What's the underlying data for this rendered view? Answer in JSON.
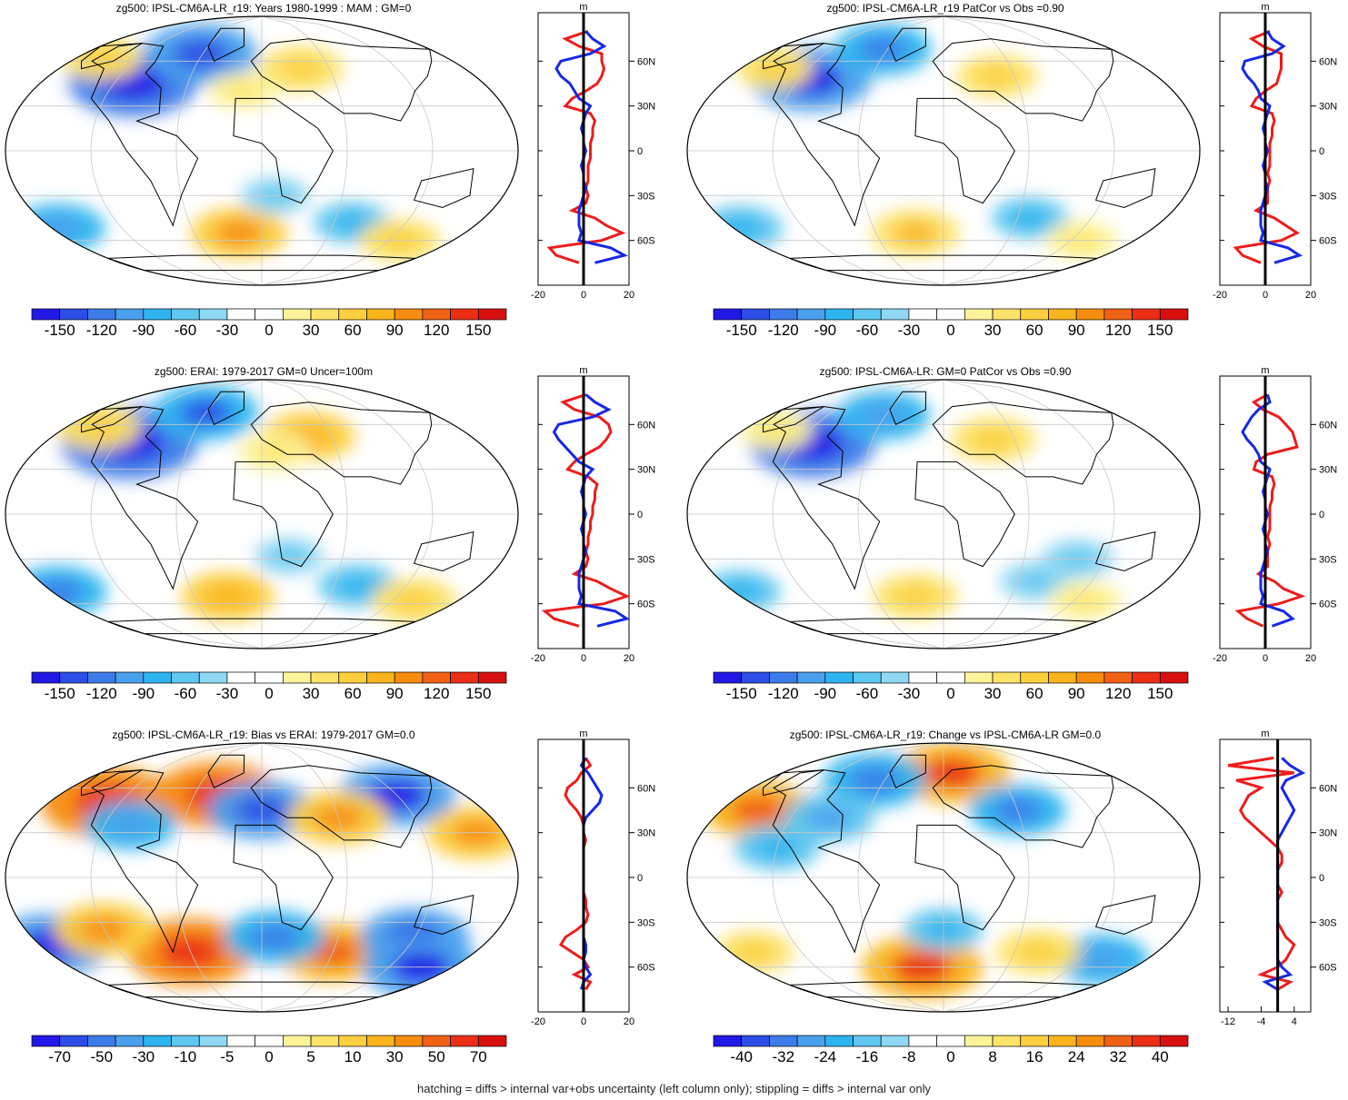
{
  "footer": "hatching = diffs > internal var+obs uncertainty (left column only); stippling = diffs > internal var only",
  "chart_data": [
    {
      "type": "heatmap",
      "title": "zg500: IPSL-CM6A-LR_r19: Years 1980-1999 : MAM : GM=0",
      "colorbar_ticks": [
        "-150",
        "-120",
        "-90",
        "-60",
        "-30",
        "0",
        "30",
        "60",
        "90",
        "120",
        "150"
      ],
      "blobs": [
        {
          "lon": -105,
          "lat": 46,
          "v": -100
        },
        {
          "lon": -62,
          "lat": 65,
          "v": -80
        },
        {
          "lon": 35,
          "lat": 55,
          "v": 45
        },
        {
          "lon": -155,
          "lat": 62,
          "v": 40
        },
        {
          "lon": -15,
          "lat": 40,
          "v": 25
        },
        {
          "lon": -175,
          "lat": -52,
          "v": -55
        },
        {
          "lon": 75,
          "lat": -48,
          "v": -35
        },
        {
          "lon": -20,
          "lat": -55,
          "v": 60
        },
        {
          "lon": 130,
          "lat": -60,
          "v": 40
        },
        {
          "lon": 10,
          "lat": -30,
          "v": -25
        }
      ],
      "profile_axis": {
        "xticks": [
          "-20",
          "0",
          "20"
        ],
        "xlim": [
          -20,
          20
        ],
        "yticks": [
          "60N",
          "30N",
          "0",
          "30S",
          "60S"
        ],
        "unit": "m"
      },
      "profile": {
        "lat": [
          80,
          75,
          70,
          65,
          60,
          55,
          50,
          45,
          40,
          35,
          30,
          25,
          20,
          15,
          10,
          5,
          0,
          -5,
          -10,
          -15,
          -20,
          -25,
          -30,
          -35,
          -40,
          -45,
          -50,
          -55,
          -60,
          -65,
          -70,
          -75
        ],
        "red": [
          2,
          -8,
          -2,
          8,
          8,
          9,
          8,
          6,
          1,
          -5,
          -8,
          3,
          5,
          4,
          4,
          3,
          3,
          3,
          2,
          2,
          2,
          1,
          2,
          1,
          -5,
          5,
          10,
          17,
          8,
          -15,
          -12,
          -2
        ],
        "blue": [
          1,
          4,
          9,
          3,
          -10,
          -12,
          -10,
          -6,
          -4,
          -2,
          3,
          1,
          0,
          -1,
          0,
          0,
          1,
          0,
          -1,
          0,
          0,
          1,
          0,
          -1,
          -2,
          -2,
          -2,
          -1,
          -2,
          12,
          18,
          5
        ]
      }
    },
    {
      "type": "heatmap",
      "title": "zg500: IPSL-CM6A-LR_r19 PatCor vs Obs =0.90",
      "colorbar_ticks": [
        "-150",
        "-120",
        "-90",
        "-60",
        "-30",
        "0",
        "30",
        "60",
        "90",
        "120",
        "150"
      ],
      "blobs": [
        {
          "lon": -110,
          "lat": 48,
          "v": -90
        },
        {
          "lon": -65,
          "lat": 68,
          "v": -60
        },
        {
          "lon": 45,
          "lat": 50,
          "v": 40
        },
        {
          "lon": -150,
          "lat": 55,
          "v": 35
        },
        {
          "lon": -175,
          "lat": -52,
          "v": -45
        },
        {
          "lon": 70,
          "lat": -45,
          "v": -35
        },
        {
          "lon": -25,
          "lat": -55,
          "v": 50
        },
        {
          "lon": 130,
          "lat": -60,
          "v": 30
        }
      ],
      "profile_axis": {
        "xticks": [
          "-20",
          "0",
          "20"
        ],
        "xlim": [
          -20,
          20
        ],
        "yticks": [
          "60N",
          "30N",
          "0",
          "30S",
          "60S"
        ],
        "unit": "m"
      },
      "profile": {
        "lat": [
          80,
          75,
          70,
          65,
          60,
          55,
          50,
          45,
          40,
          35,
          30,
          25,
          20,
          15,
          10,
          5,
          0,
          -5,
          -10,
          -15,
          -20,
          -25,
          -30,
          -35,
          -40,
          -45,
          -50,
          -55,
          -60,
          -65,
          -70,
          -75
        ],
        "red": [
          2,
          -6,
          -1,
          7,
          7,
          7,
          6,
          5,
          0,
          -4,
          -6,
          3,
          4,
          3,
          3,
          2,
          2,
          2,
          2,
          1,
          2,
          1,
          1,
          1,
          -4,
          4,
          9,
          14,
          7,
          -13,
          -10,
          -2
        ],
        "blue": [
          1,
          3,
          8,
          3,
          -9,
          -10,
          -8,
          -5,
          -3,
          -2,
          2,
          1,
          0,
          -1,
          0,
          0,
          1,
          0,
          -1,
          0,
          0,
          1,
          0,
          -1,
          -2,
          -2,
          -2,
          -1,
          -2,
          10,
          15,
          4
        ]
      }
    },
    {
      "type": "heatmap",
      "title": "zg500: ERAI: 1979-2017 GM=0 Uncer=100m",
      "colorbar_ticks": [
        "-150",
        "-120",
        "-90",
        "-60",
        "-30",
        "0",
        "30",
        "60",
        "90",
        "120",
        "150"
      ],
      "blobs": [
        {
          "lon": -110,
          "lat": 48,
          "v": -110
        },
        {
          "lon": -60,
          "lat": 68,
          "v": -70
        },
        {
          "lon": 40,
          "lat": 52,
          "v": 55
        },
        {
          "lon": -150,
          "lat": 58,
          "v": 45
        },
        {
          "lon": 10,
          "lat": 42,
          "v": 30
        },
        {
          "lon": -175,
          "lat": -52,
          "v": -60
        },
        {
          "lon": 80,
          "lat": -48,
          "v": -40
        },
        {
          "lon": -30,
          "lat": -55,
          "v": 55
        },
        {
          "lon": 140,
          "lat": -58,
          "v": 45
        },
        {
          "lon": 20,
          "lat": -28,
          "v": -25
        }
      ],
      "profile_axis": {
        "xticks": [
          "-20",
          "0",
          "20"
        ],
        "xlim": [
          -20,
          20
        ],
        "yticks": [
          "60N",
          "30N",
          "0",
          "30S",
          "60S"
        ],
        "unit": "m"
      },
      "profile": {
        "lat": [
          80,
          75,
          70,
          65,
          60,
          55,
          50,
          45,
          40,
          35,
          30,
          25,
          20,
          15,
          10,
          5,
          0,
          -5,
          -10,
          -15,
          -20,
          -25,
          -30,
          -35,
          -40,
          -45,
          -50,
          -55,
          -60,
          -65,
          -70,
          -75
        ],
        "red": [
          1,
          -9,
          -4,
          7,
          11,
          12,
          10,
          7,
          1,
          -4,
          -7,
          2,
          6,
          5,
          5,
          4,
          4,
          3,
          3,
          2,
          2,
          1,
          2,
          1,
          -4,
          6,
          12,
          19,
          9,
          -17,
          -13,
          -2
        ],
        "blue": [
          1,
          5,
          11,
          4,
          -11,
          -13,
          -11,
          -8,
          -5,
          -2,
          4,
          1,
          0,
          -1,
          0,
          0,
          1,
          0,
          -1,
          0,
          0,
          1,
          0,
          -1,
          -2,
          -2,
          -2,
          -1,
          -2,
          14,
          19,
          6
        ]
      }
    },
    {
      "type": "heatmap",
      "title": "zg500: IPSL-CM6A-LR: GM=0 PatCor vs Obs =0.90",
      "colorbar_ticks": [
        "-150",
        "-120",
        "-90",
        "-60",
        "-30",
        "0",
        "30",
        "60",
        "90",
        "120",
        "150"
      ],
      "blobs": [
        {
          "lon": -108,
          "lat": 47,
          "v": -95
        },
        {
          "lon": -62,
          "lat": 66,
          "v": -55
        },
        {
          "lon": 42,
          "lat": 50,
          "v": 45
        },
        {
          "lon": -150,
          "lat": 56,
          "v": 30
        },
        {
          "lon": -175,
          "lat": -52,
          "v": -40
        },
        {
          "lon": 75,
          "lat": -45,
          "v": -30
        },
        {
          "lon": -25,
          "lat": -55,
          "v": 45
        },
        {
          "lon": 130,
          "lat": -58,
          "v": 30
        },
        {
          "lon": 100,
          "lat": -30,
          "v": -30
        }
      ],
      "profile_axis": {
        "xticks": [
          "-20",
          "0",
          "20"
        ],
        "xlim": [
          -20,
          20
        ],
        "yticks": [
          "60N",
          "30N",
          "0",
          "30S",
          "60S"
        ],
        "unit": "m"
      },
      "profile": {
        "lat": [
          80,
          75,
          70,
          65,
          60,
          55,
          50,
          45,
          40,
          35,
          30,
          25,
          20,
          15,
          10,
          5,
          0,
          -5,
          -10,
          -15,
          -20,
          -25,
          -30,
          -35,
          -40,
          -45,
          -50,
          -55,
          -60,
          -65,
          -70,
          -75
        ],
        "red": [
          1,
          -5,
          -1,
          6,
          9,
          12,
          13,
          14,
          1,
          -4,
          -5,
          3,
          4,
          3,
          3,
          2,
          2,
          2,
          2,
          1,
          2,
          1,
          1,
          1,
          -3,
          4,
          8,
          16,
          6,
          -12,
          -8,
          -1
        ],
        "blue": [
          1,
          2,
          -3,
          -6,
          -8,
          -10,
          -8,
          -5,
          -3,
          -2,
          2,
          1,
          0,
          -1,
          0,
          0,
          1,
          0,
          -1,
          0,
          0,
          1,
          0,
          -1,
          -2,
          -2,
          -2,
          -1,
          -2,
          8,
          12,
          3
        ]
      }
    },
    {
      "type": "heatmap",
      "title": "zg500: IPSL-CM6A-LR_r19: Bias vs ERAI: 1979-2017 GM=0.0",
      "colorbar_ticks": [
        "-70",
        "-50",
        "-30",
        "-10",
        "-5",
        "0",
        "5",
        "10",
        "30",
        "50",
        "70"
      ],
      "blobs": [
        {
          "lon": -130,
          "lat": 50,
          "v": 50
        },
        {
          "lon": -40,
          "lat": 55,
          "v": 45
        },
        {
          "lon": 120,
          "lat": 55,
          "v": -40
        },
        {
          "lon": 0,
          "lat": 45,
          "v": -35
        },
        {
          "lon": 60,
          "lat": 40,
          "v": 30
        },
        {
          "lon": 160,
          "lat": 30,
          "v": 30
        },
        {
          "lon": -100,
          "lat": 35,
          "v": -25
        },
        {
          "lon": -170,
          "lat": -45,
          "v": -40
        },
        {
          "lon": -60,
          "lat": -50,
          "v": 45
        },
        {
          "lon": 60,
          "lat": -50,
          "v": 35
        },
        {
          "lon": 120,
          "lat": -40,
          "v": -35
        },
        {
          "lon": -120,
          "lat": -35,
          "v": 30
        },
        {
          "lon": 10,
          "lat": -40,
          "v": -30
        },
        {
          "lon": 150,
          "lat": -60,
          "v": -40
        }
      ],
      "profile_axis": {
        "xticks": [
          "-20",
          "0",
          "20"
        ],
        "xlim": [
          -20,
          20
        ],
        "yticks": [
          "60N",
          "30N",
          "0",
          "30S",
          "60S"
        ],
        "unit": "m"
      },
      "profile": {
        "lat": [
          80,
          75,
          70,
          65,
          60,
          55,
          50,
          45,
          40,
          35,
          30,
          25,
          20,
          15,
          10,
          5,
          0,
          -5,
          -10,
          -15,
          -20,
          -25,
          -30,
          -35,
          -40,
          -45,
          -50,
          -55,
          -60,
          -65,
          -70,
          -75
        ],
        "red": [
          1,
          3,
          -1,
          -3,
          -7,
          -8,
          -6,
          -3,
          -1,
          0,
          0,
          1,
          0,
          0,
          0,
          0,
          0,
          0,
          0,
          1,
          1,
          2,
          1,
          -3,
          -8,
          -10,
          -5,
          0,
          2,
          -4,
          3,
          1
        ],
        "blue": [
          1,
          -1,
          2,
          4,
          6,
          8,
          7,
          4,
          1,
          0,
          0,
          0,
          0,
          0,
          0,
          0,
          0,
          0,
          0,
          0,
          0,
          0,
          0,
          0,
          0,
          1,
          1,
          0,
          1,
          3,
          0,
          -1
        ]
      }
    },
    {
      "type": "heatmap",
      "title": "zg500: IPSL-CM6A-LR_r19: Change vs IPSL-CM6A-LR GM=0.0",
      "colorbar_ticks": [
        "-40",
        "-32",
        "-24",
        "-16",
        "-8",
        "0",
        "8",
        "16",
        "24",
        "32",
        "40"
      ],
      "blobs": [
        {
          "lon": -150,
          "lat": 45,
          "v": 20
        },
        {
          "lon": 10,
          "lat": 70,
          "v": 22
        },
        {
          "lon": -70,
          "lat": 65,
          "v": -18
        },
        {
          "lon": 60,
          "lat": 45,
          "v": -16
        },
        {
          "lon": -90,
          "lat": 40,
          "v": -14
        },
        {
          "lon": -120,
          "lat": 20,
          "v": -12
        },
        {
          "lon": -20,
          "lat": -60,
          "v": 24
        },
        {
          "lon": 140,
          "lat": -55,
          "v": -15
        },
        {
          "lon": 80,
          "lat": -50,
          "v": 12
        },
        {
          "lon": -160,
          "lat": -50,
          "v": 10
        },
        {
          "lon": 0,
          "lat": -35,
          "v": -10
        }
      ],
      "profile_axis": {
        "xticks": [
          "-12",
          "-4",
          "4"
        ],
        "xlim": [
          -14,
          8
        ],
        "yticks": [
          "60N",
          "30N",
          "0",
          "30S",
          "60S"
        ],
        "unit": "m"
      },
      "profile": {
        "lat": [
          80,
          75,
          70,
          65,
          60,
          55,
          50,
          45,
          40,
          35,
          30,
          25,
          20,
          15,
          10,
          5,
          0,
          -5,
          -10,
          -15,
          -20,
          -25,
          -30,
          -35,
          -40,
          -45,
          -50,
          -55,
          -60,
          -65,
          -70,
          -75
        ],
        "red": [
          -1,
          -12,
          4,
          -10,
          -4,
          -7,
          -8,
          -9,
          -8,
          -6,
          -4,
          -2,
          0,
          1,
          1,
          0,
          0,
          0,
          1,
          0,
          0,
          0,
          0,
          1,
          2,
          4,
          3,
          2,
          0,
          -4,
          3,
          0
        ],
        "blue": [
          1,
          3,
          6,
          2,
          1,
          2,
          3,
          4,
          3,
          2,
          1,
          0,
          0,
          0,
          0,
          0,
          0,
          0,
          0,
          0,
          0,
          0,
          0,
          0,
          0,
          0,
          0,
          0,
          1,
          3,
          -3,
          0
        ]
      }
    }
  ]
}
